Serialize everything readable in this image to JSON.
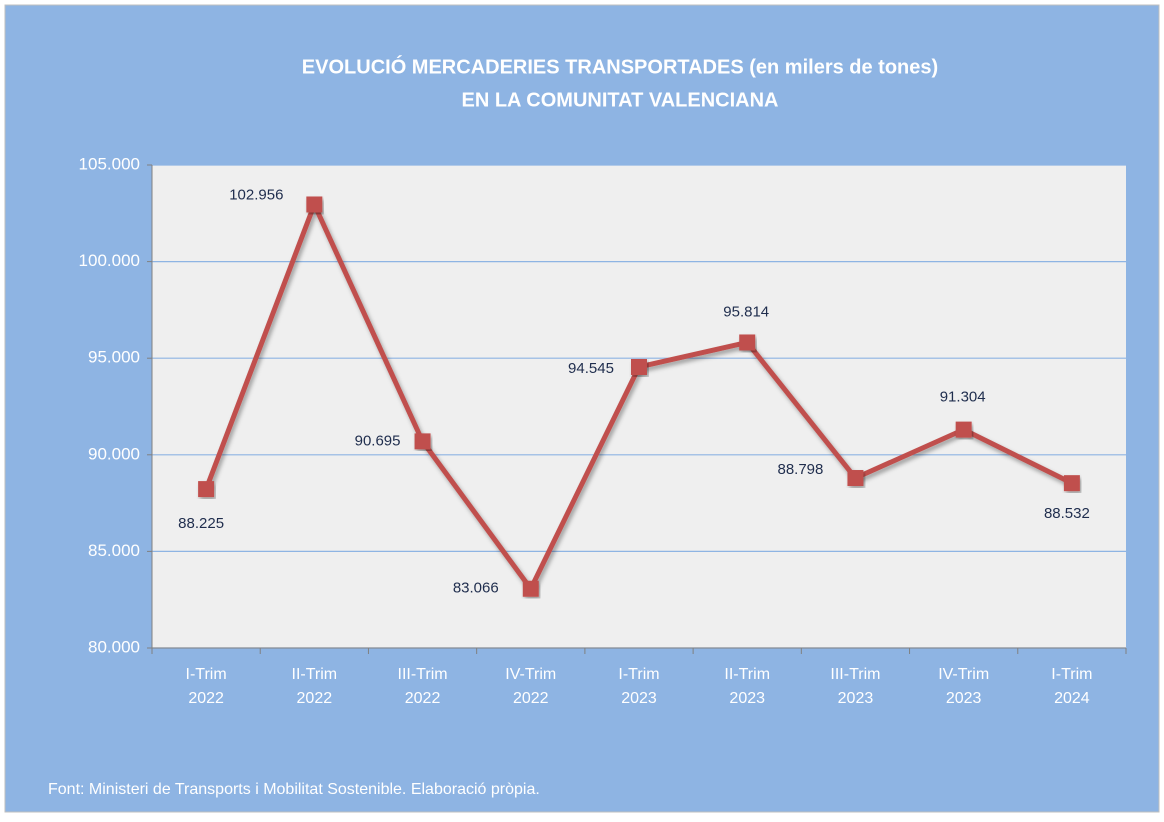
{
  "chart_data": {
    "type": "line",
    "title": [
      "EVOLUCIÓ MERCADERIES TRANSPORTADES (en milers de tones)",
      "EN LA COMUNITAT VALENCIANA"
    ],
    "categories": [
      "I-Trim 2022",
      "II-Trim 2022",
      "III-Trim 2022",
      "IV-Trim 2022",
      "I-Trim 2023",
      "II-Trim 2023",
      "III-Trim 2023",
      "IV-Trim 2023",
      "I-Trim 2024"
    ],
    "series": [
      {
        "color": "#c0504d",
        "values": [
          88225,
          102956,
          90695,
          83066,
          94545,
          95814,
          88798,
          91304,
          88532
        ],
        "value_labels": [
          "88.225",
          "102.956",
          "90.695",
          "83.066",
          "94.545",
          "95.814",
          "88.798",
          "91.304",
          "88.532"
        ]
      }
    ],
    "ylim": [
      80000,
      105000
    ],
    "yticks": [
      {
        "value": 80000,
        "label": "80.000"
      },
      {
        "value": 85000,
        "label": "85.000"
      },
      {
        "value": 90000,
        "label": "90.000"
      },
      {
        "value": 95000,
        "label": "95.000"
      },
      {
        "value": 100000,
        "label": "100.000"
      },
      {
        "value": 105000,
        "label": "105.000"
      }
    ],
    "grid": true,
    "source": "Font: Ministeri de  Transports i Mobilitat Sostenible. Elaboració pròpia."
  }
}
